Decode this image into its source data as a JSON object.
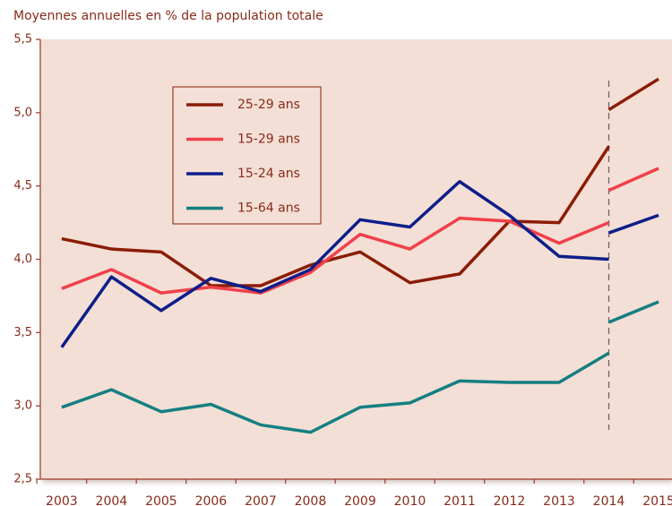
{
  "chart_data": {
    "type": "line",
    "title": "Moyennes annuelles en % de la population totale",
    "x": [
      2003,
      2004,
      2005,
      2006,
      2007,
      2008,
      2009,
      2010,
      2011,
      2012,
      2013,
      2014,
      2014,
      2014,
      2015
    ],
    "xlim": [
      2002.57,
      2015.27
    ],
    "xticks": [
      2003,
      2004,
      2005,
      2006,
      2007,
      2008,
      2009,
      2010,
      2011,
      2012,
      2013,
      2014,
      2015
    ],
    "ylim": [
      2.5,
      5.5
    ],
    "yticks": [
      {
        "value": 2.5,
        "label": "2,5"
      },
      {
        "value": 3.0,
        "label": "3,0"
      },
      {
        "value": 3.5,
        "label": "3,5"
      },
      {
        "value": 4.0,
        "label": "4,0"
      },
      {
        "value": 4.5,
        "label": "4,5"
      },
      {
        "value": 5.0,
        "label": "5,0"
      },
      {
        "value": 5.5,
        "label": "5,5"
      }
    ],
    "legend": "upper left",
    "series": [
      {
        "name": "25-29 ans",
        "color": "#8b1c06",
        "values": [
          4.14,
          4.07,
          4.05,
          3.82,
          3.82,
          3.96,
          4.05,
          3.84,
          3.9,
          4.26,
          4.25,
          4.77,
          null,
          5.02,
          5.23
        ]
      },
      {
        "name": "15-29 ans",
        "color": "#f0404a",
        "values": [
          3.8,
          3.93,
          3.77,
          3.81,
          3.77,
          3.91,
          4.17,
          4.07,
          4.28,
          4.26,
          4.11,
          4.25,
          null,
          4.47,
          4.62
        ]
      },
      {
        "name": "15-24 ans",
        "color": "#0e1e8a",
        "values": [
          3.4,
          3.88,
          3.65,
          3.87,
          3.78,
          3.93,
          4.27,
          4.22,
          4.53,
          4.3,
          4.02,
          4.0,
          null,
          4.18,
          4.3
        ]
      },
      {
        "name": "15-64 ans",
        "color": "#157f82",
        "values": [
          2.99,
          3.11,
          2.96,
          3.01,
          2.87,
          2.82,
          2.99,
          3.02,
          3.17,
          3.16,
          3.16,
          3.36,
          null,
          3.57,
          3.71
        ]
      }
    ]
  }
}
